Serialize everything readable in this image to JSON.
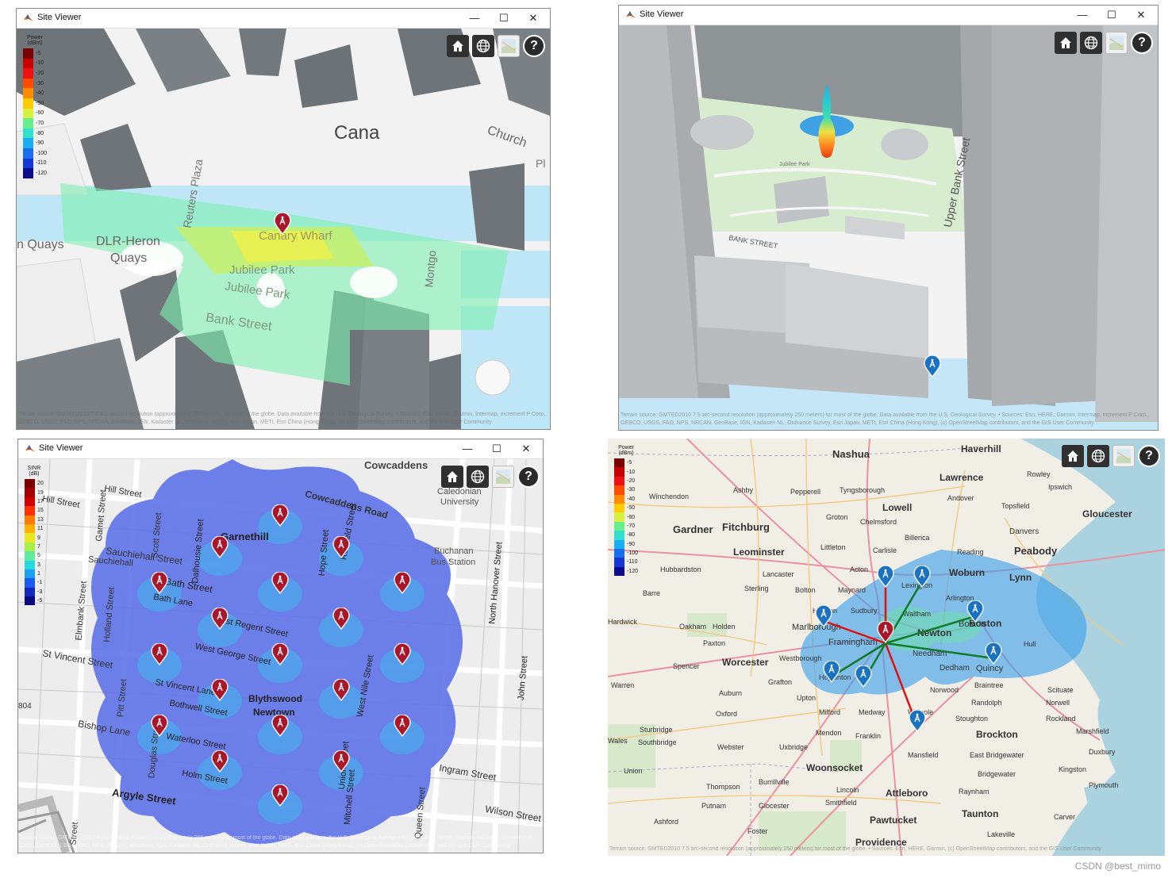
{
  "windows": [
    {
      "title": "Site Viewer",
      "minimize": "—",
      "maximize": "☐",
      "close": "✕"
    },
    {
      "title": "Site Viewer",
      "minimize": "—",
      "maximize": "☐",
      "close": "✕"
    },
    {
      "title": "Site Viewer",
      "minimize": "—",
      "maximize": "☐",
      "close": "✕"
    }
  ],
  "toolbar_icons": [
    "home-icon",
    "globe-icon",
    "basemap-icon",
    "help-icon"
  ],
  "help_glyph": "?",
  "legends": {
    "power_title": [
      "Power",
      "(dBm)"
    ],
    "power_values": [
      "-5",
      "-10",
      "-20",
      "-30",
      "-40",
      "-50",
      "-60",
      "-70",
      "-80",
      "-90",
      "-100",
      "-110",
      "-120"
    ],
    "sinr_title": [
      "SINR",
      "(dB)"
    ],
    "sinr_values": [
      "20",
      "19",
      "17",
      "15",
      "13",
      "11",
      "9",
      "7",
      "5",
      "3",
      "1",
      "-1",
      "-3",
      "-5"
    ]
  },
  "colors": {
    "power": [
      "#7a0000",
      "#c80000",
      "#f01010",
      "#ff4a00",
      "#ff8c00",
      "#ffcc00",
      "#d8f040",
      "#66ef8a",
      "#32e0d0",
      "#1aaef2",
      "#1a6ef0",
      "#1438d8",
      "#0b0b8c"
    ],
    "sinr": [
      "#7a0000",
      "#a50000",
      "#d00000",
      "#ff3000",
      "#ff7a00",
      "#ffb000",
      "#e8e820",
      "#a8f048",
      "#60eaa0",
      "#2ad8e0",
      "#1aa0f0",
      "#1a5af0",
      "#1428c0",
      "#0a0a80"
    ],
    "site_marker_red": "#a8182a",
    "site_marker_blue": "#1a72c0",
    "link_red": "#e01010",
    "link_green": "#117a2c"
  },
  "map1": {
    "labels": [
      "Cana",
      "Church",
      "Canary Wharf",
      "Jubilee Park",
      "Jubilee Park",
      "DLR-Heron",
      "Quays",
      "n Quays",
      "Bank Street",
      "Reuters Plaza",
      "Montgo",
      "Pl"
    ],
    "attribution": "Terrain source: GMTED2010 7.5 arc-second resolution (approximately 250 meters) for most of the globe. Data available from the U.S. Geological Survey. • Sources: Esri, HERE, Garmin, Intermap, increment P Corp., GEBCO, USGS, FAO, NPS, NRCAN, GeoBase, IGN, Kadaster NL, Ordnance Survey, Esri Japan, METI, Esri China (Hong Kong), (c) OpenStreetMap contributors, and the GIS User Community"
  },
  "map2": {
    "labels": [
      "Jubilee Park",
      "Upper Bank Street",
      "BANK STREET"
    ],
    "attribution": "Terrain source: GMTED2010 7.5 arc-second resolution (approximately 250 meters) for most of the globe. Data available from the U.S. Geological Survey. • Sources: Esri, HERE, Garmin, Intermap, increment P Corp., GEBCO, USGS, FAO, NPS, NRCAN, GeoBase, IGN, Kadaster NL, Ordnance Survey, Esri Japan, METI, Esri China (Hong Kong), (c) OpenStreetMap contributors, and the GIS User Community"
  },
  "map3": {
    "labels": [
      "Cowcaddens",
      "Caledonian",
      "University",
      "Cowcaddens Road",
      "Garnethill",
      "Sauchiehall Street",
      "Bath Street",
      "Bath Lane",
      "West Regent Street",
      "West George Street",
      "St Vincent Street",
      "St Vincent Lane",
      "Blythswood",
      "Newtown",
      "Bothwell Street",
      "Bishop Lane",
      "Waterloo Street",
      "Holm Street",
      "Argyle Street",
      "Wilson Street",
      "Ingram Street",
      "Buchanan",
      "Bus Station",
      "Hope Street",
      "North Hanover Street",
      "John Street",
      "Elmbank Street",
      "Holland Street",
      "Pitt Street",
      "Douglas Street",
      "West Nile Street",
      "Union Street",
      "Mitchell Street",
      "Queen Street",
      "Hill Street",
      "Scott Street",
      "Dalhousie Street",
      "Renfield Street",
      "Gamet Street",
      "Sauchiehall",
      "Hill Street",
      "804",
      "Street"
    ],
    "attribution": "Terrain source: GMTED2010 7.5 arc-second resolution (approximately 250 meters) for most of the globe. Data available from the U.S. Geological Survey. • Sources: Esri, HERE, Garmin, Intermap, increment P Corp., GEBCO, USGS, FAO, NPS, NRCAN, GeoBase, IGN, Kadaster NL, Ordnance Survey, Esri Japan, METI, Esri China (Hong Kong), (c) OpenStreetMap contributors, and the GIS User Community"
  },
  "map4": {
    "labels": [
      "Nashua",
      "Haverhill",
      "Lawrence",
      "Rowley",
      "Ipswich",
      "Winchendon",
      "Ashby",
      "Pepperell",
      "Tyngsborough",
      "Lowell",
      "Andover",
      "Topsfield",
      "Gloucester",
      "Groton",
      "Chelmsford",
      "Danvers",
      "Gardner",
      "Fitchburg",
      "Billerica",
      "Peabody",
      "Reading",
      "Littleton",
      "Carlisle",
      "Leominster",
      "Lynn",
      "Woburn",
      "Hubbardston",
      "Acton",
      "Lexington",
      "Lancaster",
      "Sterling",
      "Bolton",
      "Maynard",
      "Arlington",
      "Hardwick",
      "Hudson",
      "Sudbury",
      "Waltham",
      "Oakham",
      "Marlborough",
      "Newton",
      "Boston",
      "Paxton",
      "Holden",
      "Framingham",
      "Needham",
      "Hull",
      "Worcester",
      "Westborough",
      "Spencer",
      "Hopkinton",
      "Dedham",
      "Quincy",
      "Warren",
      "Grafton",
      "Norwood",
      "Braintree",
      "Scituate",
      "Upton",
      "Randolph",
      "Norwell",
      "Auburn",
      "Oxford",
      "Milford",
      "Medway",
      "Walpole",
      "Stoughton",
      "Rockland",
      "Sturbridge",
      "Southbridge",
      "Mendon",
      "Franklin",
      "Brockton",
      "Marshfield",
      "Webster",
      "Uxbridge",
      "Mansfield",
      "East Bridgewater",
      "Duxbury",
      "Union",
      "Woonsocket",
      "Bridgewater",
      "Kingston",
      "Thompson",
      "Burrillville",
      "Attleboro",
      "Plymouth",
      "Lincoln",
      "Raynham",
      "Putnam",
      "Glocester",
      "Smithfield",
      "Taunton",
      "Ashford",
      "Foster",
      "Pawtucket",
      "Carver",
      "Providence",
      "Lakeville",
      "Barre",
      "Wales",
      "Boston"
    ],
    "attribution": "Terrain source: GMTED2010 7.5 arc-second resolution (approximately 250 meters) for most of the globe. • Sources: Esri, HERE, Garmin, (c) OpenStreetMap contributors, and the GIS User Community"
  },
  "watermark": "CSDN @best_mimo"
}
